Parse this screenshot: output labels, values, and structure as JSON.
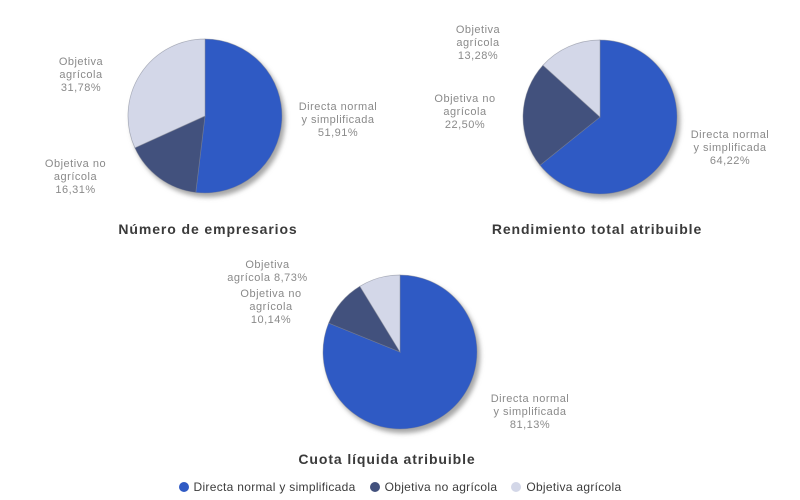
{
  "page": {
    "background": "#ffffff"
  },
  "palette": {
    "directa_normal_y_simplificada": "#2F5AC4",
    "objetiva_no_agricola": "#42517D",
    "objetiva_agricola": "#D3D7E8",
    "label_gray": "#8a8a8a",
    "title_gray": "#3a3a3a"
  },
  "chart_data": [
    {
      "type": "pie",
      "title": "Número de empresarios",
      "start_angle": "12-oclock",
      "direction": "clockwise",
      "series": [
        {
          "name": "Directa normal y simplificada",
          "value": 51.91,
          "color": "#2F5AC4"
        },
        {
          "name": "Objetiva no agrícola",
          "value": 16.31,
          "color": "#42517D"
        },
        {
          "name": "Objetiva agrícola",
          "value": 31.78,
          "color": "#D3D7E8"
        }
      ],
      "slice_labels": [
        "Directa normal\ny simplificada\n51,91%",
        "Objetiva no\nagrícola\n16,31%",
        "Objetiva\nagrícola\n31,78%"
      ]
    },
    {
      "type": "pie",
      "title": "Rendimiento total atribuible",
      "start_angle": "12-oclock",
      "direction": "clockwise",
      "series": [
        {
          "name": "Directa normal y simplificada",
          "value": 64.22,
          "color": "#2F5AC4"
        },
        {
          "name": "Objetiva no agrícola",
          "value": 22.5,
          "color": "#42517D"
        },
        {
          "name": "Objetiva agrícola",
          "value": 13.28,
          "color": "#D3D7E8"
        }
      ],
      "slice_labels": [
        "Directa normal\ny simplificada\n64,22%",
        "Objetiva no\nagrícola\n22,50%",
        "Objetiva\nagrícola\n13,28%"
      ]
    },
    {
      "type": "pie",
      "title": "Cuota líquida atribuible",
      "start_angle": "12-oclock",
      "direction": "clockwise",
      "series": [
        {
          "name": "Directa normal y simplificada",
          "value": 81.13,
          "color": "#2F5AC4"
        },
        {
          "name": "Objetiva no agrícola",
          "value": 10.14,
          "color": "#42517D"
        },
        {
          "name": "Objetiva agrícola",
          "value": 8.73,
          "color": "#D3D7E8"
        }
      ],
      "slice_labels": [
        "Directa normal\ny simplificada\n81,13%",
        "Objetiva no\nagrícola\n10,14%",
        "Objetiva\nagrícola 8,73%"
      ]
    }
  ],
  "legend": {
    "items": [
      {
        "label": "Directa normal y simplificada",
        "color": "#2F5AC4"
      },
      {
        "label": "Objetiva no agrícola",
        "color": "#42517D"
      },
      {
        "label": "Objetiva agrícola",
        "color": "#D3D7E8"
      }
    ]
  }
}
